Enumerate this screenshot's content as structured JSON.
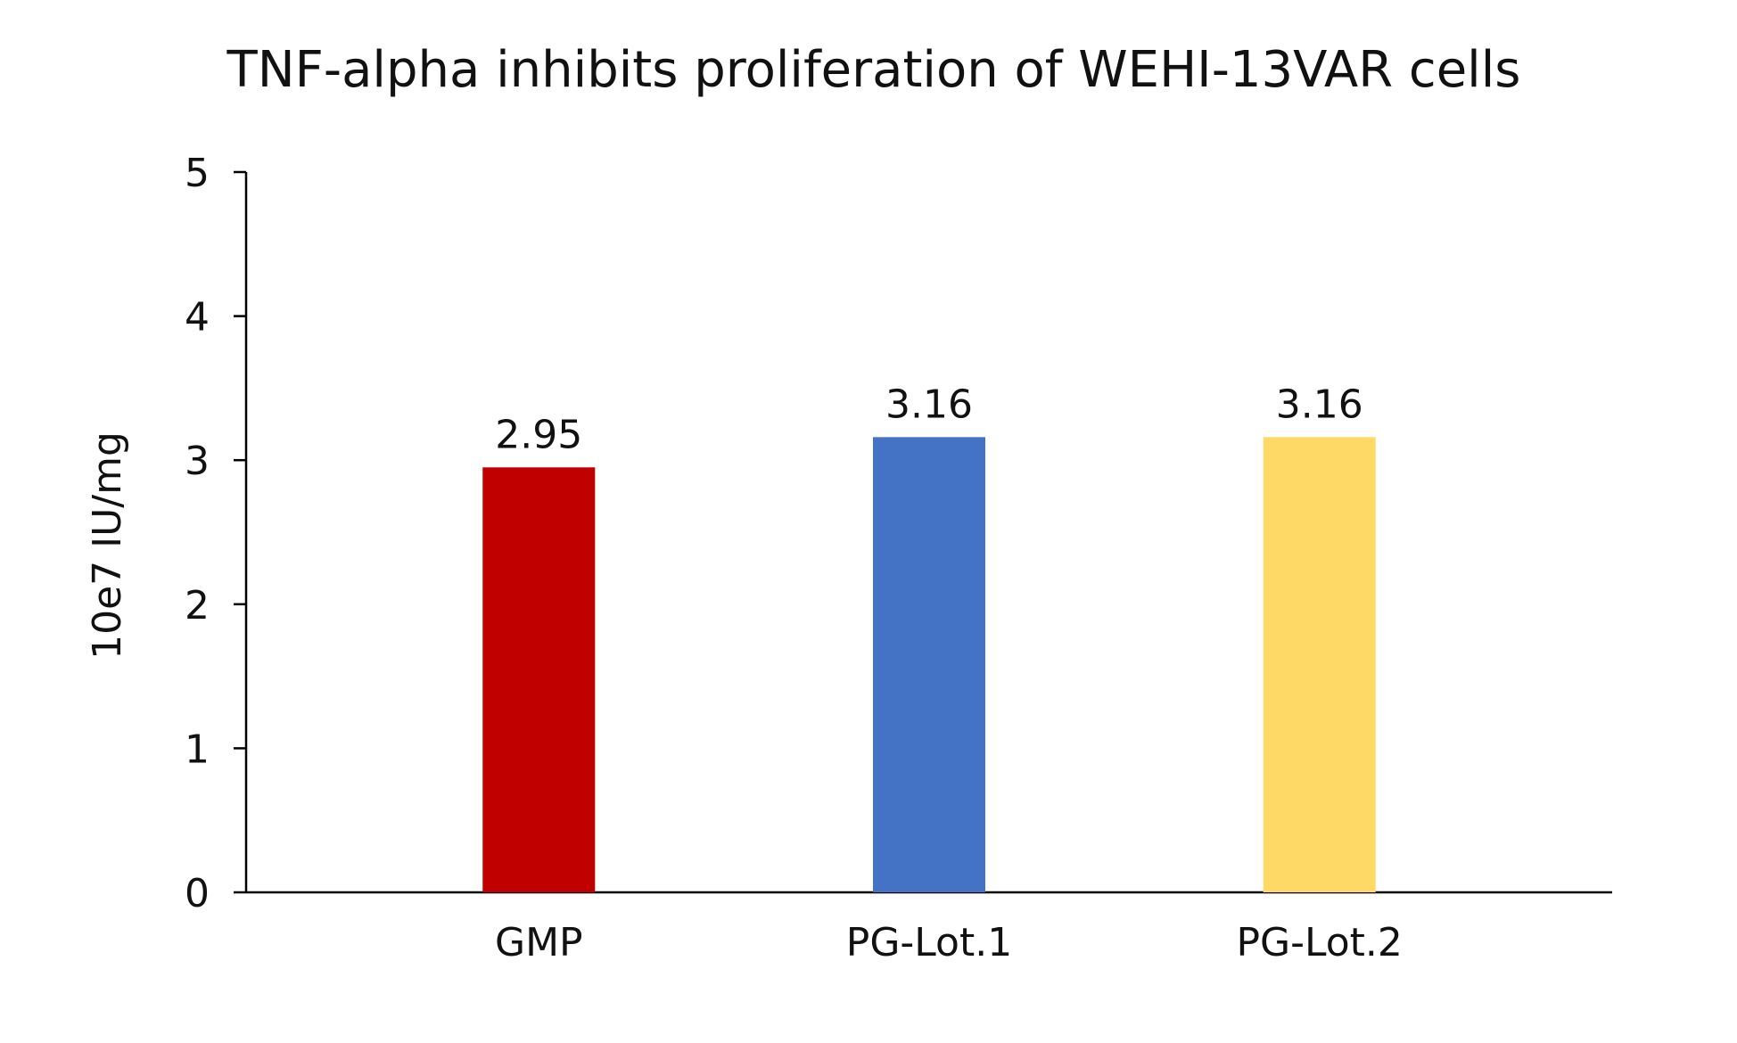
{
  "chart_data": {
    "type": "bar",
    "title": "TNF-alpha inhibits proliferation of WEHI-13VAR cells",
    "xlabel": "",
    "ylabel": "10e7 IU/mg",
    "categories": [
      "GMP",
      "PG-Lot.1",
      "PG-Lot.2"
    ],
    "values": [
      2.95,
      3.16,
      3.16
    ],
    "value_labels": [
      "2.95",
      "3.16",
      "3.16"
    ],
    "bar_colors": [
      "#C00000",
      "#4472C4",
      "#FFD966"
    ],
    "ylim": [
      0,
      5
    ],
    "y_ticks": [
      0,
      1,
      2,
      3,
      4,
      5
    ],
    "y_tick_labels": [
      "0",
      "1",
      "2",
      "3",
      "4",
      "5"
    ],
    "grid": false,
    "legend": "none"
  }
}
